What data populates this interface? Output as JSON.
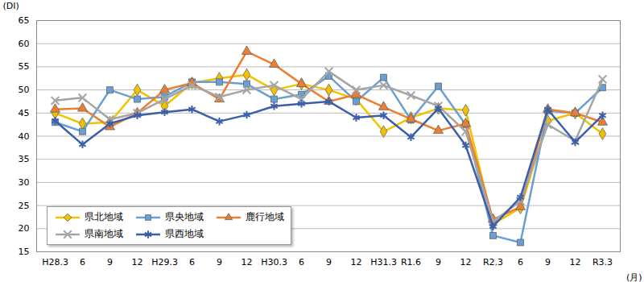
{
  "chart_data": {
    "type": "line",
    "x_label": "(月)",
    "y_label": "(DI)",
    "categories": [
      "H28.3",
      "6",
      "9",
      "12",
      "H29.3",
      "6",
      "9",
      "12",
      "H30.3",
      "6",
      "9",
      "12",
      "H31.3",
      "R1.6",
      "9",
      "12",
      "R2.3",
      "6",
      "9",
      "12",
      "R3.3"
    ],
    "series": [
      {
        "name": "県北地域",
        "color": "#f2c200",
        "marker": "diamond",
        "values": [
          45,
          42.7,
          43,
          50,
          46.5,
          51.5,
          52.5,
          53.3,
          50,
          51.3,
          50,
          48,
          41,
          44,
          46,
          45.6,
          21,
          24.5,
          43.3,
          45,
          40.5
        ]
      },
      {
        "name": "県央地域",
        "color": "#6a9fd4",
        "marker": "square",
        "values": [
          43,
          41,
          50,
          48,
          48.5,
          51.7,
          51.7,
          51.3,
          48,
          49,
          53,
          47.5,
          52.7,
          43.5,
          50.8,
          42.5,
          18.5,
          17,
          45.5,
          45,
          50.5
        ]
      },
      {
        "name": "鹿行地域",
        "color": "#ed7d31",
        "marker": "triangle",
        "values": [
          45.8,
          46,
          42,
          45,
          50,
          51.5,
          48,
          58.3,
          55.5,
          51.3,
          47.5,
          49,
          46.3,
          43.7,
          41.2,
          42.7,
          22,
          24.7,
          45.8,
          45,
          43
        ]
      },
      {
        "name": "県南地域",
        "color": "#a5a5a5",
        "marker": "x",
        "values": [
          47.7,
          48.3,
          43.6,
          45,
          48,
          51,
          48.5,
          50,
          51,
          48,
          54,
          50,
          51,
          48.8,
          46.5,
          41,
          21.5,
          26,
          42.5,
          39,
          52.3
        ]
      },
      {
        "name": "県西地域",
        "color": "#3b5fa8",
        "marker": "asterisk",
        "values": [
          43.3,
          38.2,
          42.7,
          44.5,
          45.2,
          45.8,
          43.2,
          44.6,
          46.5,
          47,
          47.5,
          44,
          44.5,
          39.8,
          46,
          38,
          20.5,
          26.8,
          45.8,
          38.7,
          44.5
        ]
      }
    ],
    "ylim": [
      15,
      65
    ],
    "yticks": [
      15,
      20,
      25,
      30,
      35,
      40,
      45,
      50,
      55,
      60,
      65
    ],
    "grid": true,
    "legend": "lower left"
  }
}
